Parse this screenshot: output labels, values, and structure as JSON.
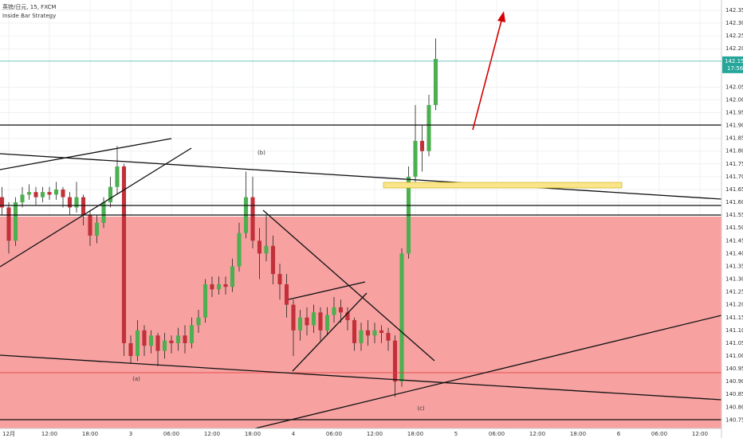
{
  "chart_data": {
    "type": "candlestick",
    "title": "英镑/日元, 15, FXCM",
    "subtitle": "Inside Bar Strategy",
    "annotations": [
      "(a)",
      "(b)",
      "(c)"
    ],
    "current_price": 142.151,
    "countdown": "17:56",
    "up_color": "#4caf50",
    "down_color": "#c2303a",
    "price_line_color": "#26a69a",
    "grid": true,
    "xlim": [
      4.706,
      111.176
    ],
    "ylim": [
      140.717,
      142.39
    ],
    "xticks": [
      {
        "value": 6,
        "label": "12月"
      },
      {
        "value": 12,
        "label": "12:00"
      },
      {
        "value": 18,
        "label": "18:00"
      },
      {
        "value": 24,
        "label": "3"
      },
      {
        "value": 30,
        "label": "06:00"
      },
      {
        "value": 36,
        "label": "12:00"
      },
      {
        "value": 42,
        "label": "18:00"
      },
      {
        "value": 48,
        "label": "4"
      },
      {
        "value": 54,
        "label": "06:00"
      },
      {
        "value": 60,
        "label": "12:00"
      },
      {
        "value": 66,
        "label": "18:00"
      },
      {
        "value": 72,
        "label": "5"
      },
      {
        "value": 78,
        "label": "06:00"
      },
      {
        "value": 84,
        "label": "12:00"
      },
      {
        "value": 90,
        "label": "18:00"
      },
      {
        "value": 96,
        "label": "6"
      },
      {
        "value": 102,
        "label": "06:00"
      },
      {
        "value": 108,
        "label": "12:00"
      }
    ],
    "yticks": [
      {
        "value": 140.75,
        "label": "140.750"
      },
      {
        "value": 140.8,
        "label": "140.800"
      },
      {
        "value": 140.85,
        "label": "140.850"
      },
      {
        "value": 140.9,
        "label": "140.900"
      },
      {
        "value": 140.95,
        "label": "140.950"
      },
      {
        "value": 141,
        "label": "141.000"
      },
      {
        "value": 141.05,
        "label": "141.050"
      },
      {
        "value": 141.1,
        "label": "141.100"
      },
      {
        "value": 141.15,
        "label": "141.150"
      },
      {
        "value": 141.2,
        "label": "141.200"
      },
      {
        "value": 141.25,
        "label": "141.250"
      },
      {
        "value": 141.3,
        "label": "141.300"
      },
      {
        "value": 141.35,
        "label": "141.350"
      },
      {
        "value": 141.4,
        "label": "141.400"
      },
      {
        "value": 141.45,
        "label": "141.450"
      },
      {
        "value": 141.5,
        "label": "141.500"
      },
      {
        "value": 141.55,
        "label": "141.550"
      },
      {
        "value": 141.6,
        "label": "141.600"
      },
      {
        "value": 141.65,
        "label": "141.650"
      },
      {
        "value": 141.7,
        "label": "141.700"
      },
      {
        "value": 141.75,
        "label": "141.750"
      },
      {
        "value": 141.8,
        "label": "141.800"
      },
      {
        "value": 141.85,
        "label": "141.850"
      },
      {
        "value": 141.9,
        "label": "141.900"
      },
      {
        "value": 141.95,
        "label": "141.950"
      },
      {
        "value": 142,
        "label": "142.000"
      },
      {
        "value": 142.05,
        "label": "142.050"
      },
      {
        "value": 142.2,
        "label": "142.200"
      },
      {
        "value": 142.25,
        "label": "142.250"
      },
      {
        "value": 142.3,
        "label": "142.300"
      },
      {
        "value": 142.35,
        "label": "142.350"
      }
    ],
    "x": [
      5,
      6,
      7,
      8,
      9,
      10,
      11,
      12,
      13,
      14,
      15,
      16,
      17,
      18,
      19,
      20,
      21,
      22,
      23,
      24,
      25,
      26,
      27,
      28,
      29,
      30,
      31,
      32,
      33,
      34,
      35,
      36,
      37,
      38,
      39,
      40,
      41,
      42,
      43,
      44,
      45,
      46,
      47,
      48,
      49,
      50,
      51,
      52,
      53,
      54,
      55,
      56,
      57,
      58,
      59,
      60,
      61,
      62,
      63,
      64,
      65,
      66,
      67,
      68,
      69
    ],
    "open": [
      141.62,
      141.58,
      141.45,
      141.6,
      141.63,
      141.64,
      141.62,
      141.64,
      141.63,
      141.65,
      141.62,
      141.58,
      141.62,
      141.55,
      141.47,
      141.52,
      141.6,
      141.66,
      141.74,
      141.05,
      141,
      141.1,
      141.04,
      141.08,
      141.02,
      141.06,
      141.05,
      141.08,
      141.05,
      141.12,
      141.15,
      141.28,
      141.26,
      141.28,
      141.27,
      141.35,
      141.48,
      141.62,
      141.45,
      141.4,
      141.43,
      141.32,
      141.28,
      141.2,
      141.1,
      141.15,
      141.12,
      141.17,
      141.1,
      141.16,
      141.19,
      141.17,
      141.14,
      141.05,
      141.1,
      141.08,
      141.1,
      141.09,
      141.06,
      140.9,
      141.4,
      141.7,
      141.84,
      141.8,
      141.98
    ],
    "close": [
      141.58,
      141.45,
      141.6,
      141.63,
      141.64,
      141.62,
      141.64,
      141.63,
      141.65,
      141.62,
      141.58,
      141.62,
      141.55,
      141.47,
      141.52,
      141.6,
      141.66,
      141.74,
      141.05,
      141,
      141.1,
      141.04,
      141.08,
      141.02,
      141.06,
      141.05,
      141.08,
      141.05,
      141.12,
      141.15,
      141.28,
      141.26,
      141.28,
      141.27,
      141.35,
      141.48,
      141.62,
      141.45,
      141.4,
      141.43,
      141.32,
      141.28,
      141.2,
      141.1,
      141.15,
      141.12,
      141.17,
      141.1,
      141.16,
      141.19,
      141.17,
      141.14,
      141.05,
      141.1,
      141.08,
      141.1,
      141.09,
      141.06,
      140.9,
      141.4,
      141.7,
      141.84,
      141.8,
      141.98,
      142.16
    ],
    "high": [
      141.66,
      141.6,
      141.62,
      141.66,
      141.67,
      141.66,
      141.66,
      141.66,
      141.68,
      141.66,
      141.64,
      141.68,
      141.63,
      141.57,
      141.55,
      141.62,
      141.7,
      141.82,
      141.75,
      141.08,
      141.14,
      141.12,
      141.1,
      141.09,
      141.09,
      141.08,
      141.11,
      141.12,
      141.15,
      141.18,
      141.3,
      141.31,
      141.31,
      141.31,
      141.38,
      141.52,
      141.72,
      141.7,
      141.5,
      141.55,
      141.47,
      141.36,
      141.32,
      141.22,
      141.18,
      141.19,
      141.2,
      141.19,
      141.19,
      141.23,
      141.22,
      141.19,
      141.15,
      141.13,
      141.14,
      141.13,
      141.12,
      141.11,
      141.08,
      141.42,
      141.74,
      141.98,
      141.9,
      142.02,
      142.24
    ],
    "low": [
      141.55,
      141.4,
      141.43,
      141.58,
      141.61,
      141.59,
      141.6,
      141.61,
      141.61,
      141.58,
      141.55,
      141.56,
      141.51,
      141.43,
      141.44,
      141.5,
      141.58,
      141.63,
      141,
      140.97,
      140.98,
      141,
      141.01,
      140.96,
      140.99,
      141.01,
      141.02,
      141.01,
      141.03,
      141.09,
      141.13,
      141.23,
      141.24,
      141.24,
      141.25,
      141.33,
      141.46,
      141.42,
      141.3,
      141.37,
      141.28,
      141.22,
      141.15,
      141,
      141.06,
      141.08,
      141.09,
      141.06,
      141.08,
      141.13,
      141.13,
      141.1,
      141.02,
      141.02,
      141.04,
      141.05,
      141.05,
      141.02,
      140.84,
      140.88,
      141.38,
      141.68,
      141.72,
      141.78,
      141.96
    ]
  }
}
